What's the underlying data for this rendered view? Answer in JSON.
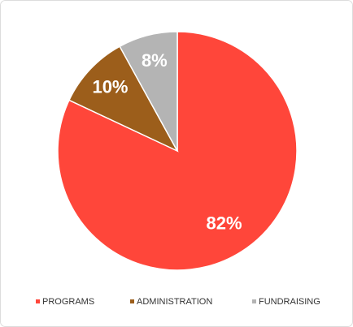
{
  "chart_data": {
    "type": "pie",
    "categories": [
      "PROGRAMS",
      "ADMINISTRATION",
      "FUNDRAISING"
    ],
    "values": [
      82,
      10,
      8
    ],
    "value_labels": [
      "82%",
      "10%",
      "8%"
    ],
    "colors": [
      "#ff463a",
      "#9c5e1b",
      "#b4b4b4"
    ],
    "legend": "bottom"
  }
}
